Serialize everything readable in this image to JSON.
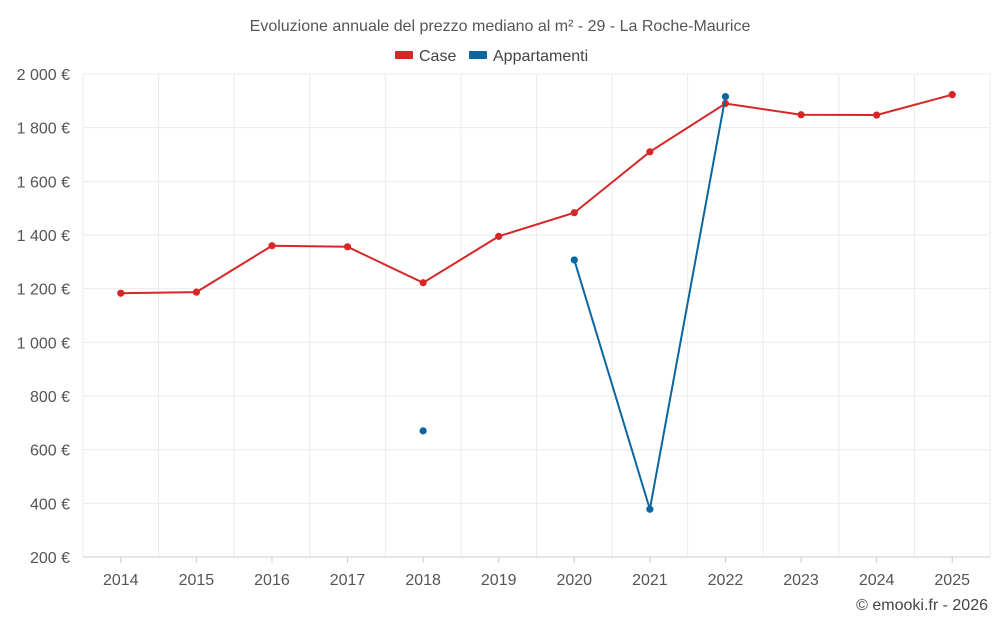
{
  "chart_data": {
    "type": "line",
    "title": "Evoluzione annuale del prezzo mediano al m² - 29 - La Roche-Maurice",
    "categories": [
      "2014",
      "2015",
      "2016",
      "2017",
      "2018",
      "2019",
      "2020",
      "2021",
      "2022",
      "2023",
      "2024",
      "2025"
    ],
    "series": [
      {
        "name": "Case",
        "color": "#d62728",
        "values": [
          1183,
          1187,
          1360,
          1356,
          1222,
          1395,
          1483,
          1710,
          1890,
          1848,
          1847,
          1923
        ]
      },
      {
        "name": "Appartamenti",
        "color": "#0a66a0",
        "values": [
          null,
          null,
          null,
          null,
          670,
          null,
          1307,
          378,
          1916,
          null,
          null,
          null
        ]
      }
    ],
    "ylim": [
      200,
      2000
    ],
    "yticks": [
      200,
      400,
      600,
      800,
      1000,
      1200,
      1400,
      1600,
      1800,
      2000
    ],
    "ytick_labels": [
      "200 €",
      "400 €",
      "600 €",
      "800 €",
      "1 000 €",
      "1 200 €",
      "1 400 €",
      "1 600 €",
      "1 800 €",
      "2 000 €"
    ],
    "legend_position": "top-center",
    "grid": true
  },
  "credit": "© emooki.fr - 2026"
}
